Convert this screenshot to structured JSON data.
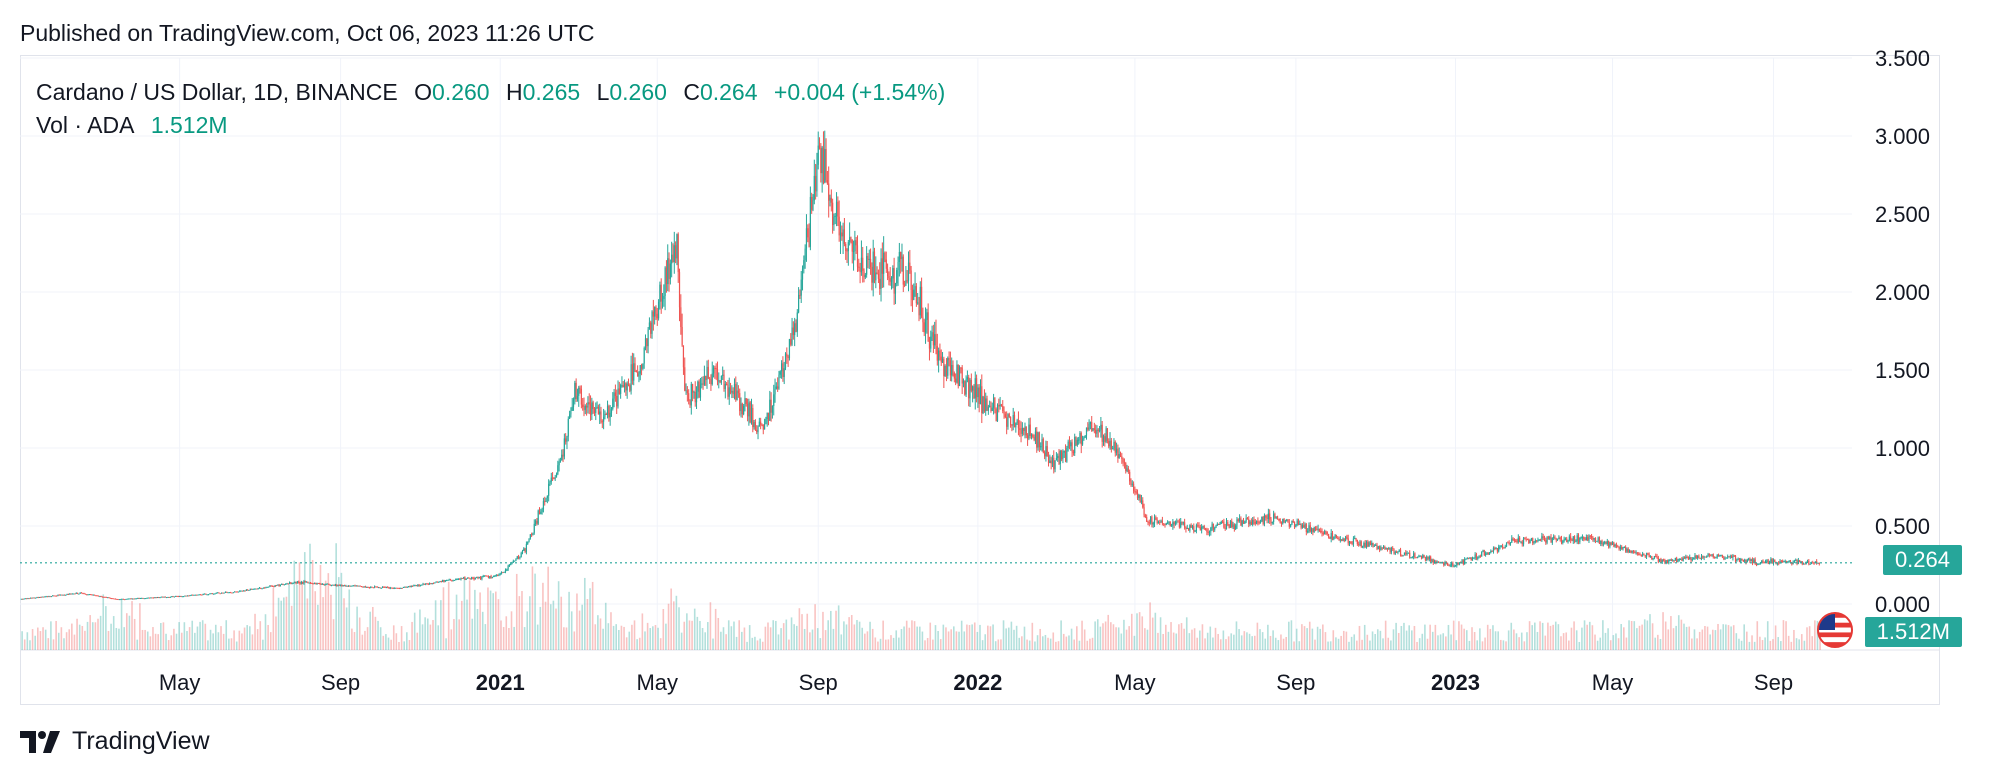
{
  "header": {
    "published": "Published on TradingView.com, Oct 06, 2023 11:26 UTC"
  },
  "legend": {
    "symbol": "Cardano / US Dollar, 1D, BINANCE",
    "o_label": "O",
    "o_value": "0.260",
    "h_label": "H",
    "h_value": "0.265",
    "l_label": "L",
    "l_value": "0.260",
    "c_label": "C",
    "c_value": "0.264",
    "change": "+0.004 (+1.54%)",
    "vol_label": "Vol · ADA",
    "vol_value": "1.512M"
  },
  "price_tag": "0.264",
  "volume_tag": "1.512M",
  "footer": {
    "brand": "TradingView"
  },
  "colors": {
    "up": "#26a69a",
    "down": "#ef5350",
    "grid": "#f0f3fa",
    "text": "#131722",
    "accent": "#089981"
  },
  "chart_data": {
    "type": "candlestick",
    "title": "Cardano / US Dollar, 1D, BINANCE",
    "y_ticks": [
      "3.500",
      "3.000",
      "2.500",
      "2.000",
      "1.500",
      "1.000",
      "0.500",
      "0.000"
    ],
    "ylim": [
      0,
      3.5
    ],
    "x_ticks": [
      {
        "label": "May",
        "date": "2020-05-01",
        "bold": false
      },
      {
        "label": "Sep",
        "date": "2020-09-01",
        "bold": false
      },
      {
        "label": "2021",
        "date": "2021-01-01",
        "bold": true
      },
      {
        "label": "May",
        "date": "2021-05-01",
        "bold": false
      },
      {
        "label": "Sep",
        "date": "2021-09-01",
        "bold": false
      },
      {
        "label": "2022",
        "date": "2022-01-01",
        "bold": true
      },
      {
        "label": "May",
        "date": "2022-05-01",
        "bold": false
      },
      {
        "label": "Sep",
        "date": "2022-09-01",
        "bold": false
      },
      {
        "label": "2023",
        "date": "2023-01-01",
        "bold": true
      },
      {
        "label": "May",
        "date": "2023-05-01",
        "bold": false
      },
      {
        "label": "Sep",
        "date": "2023-09-01",
        "bold": false
      }
    ],
    "xlim": [
      "2019-12-31",
      "2023-10-31"
    ],
    "last_close": 0.264,
    "close_path": [
      [
        "2020-01-01",
        0.033
      ],
      [
        "2020-02-15",
        0.07
      ],
      [
        "2020-03-15",
        0.03
      ],
      [
        "2020-05-01",
        0.05
      ],
      [
        "2020-06-15",
        0.08
      ],
      [
        "2020-07-30",
        0.14
      ],
      [
        "2020-09-01",
        0.12
      ],
      [
        "2020-10-15",
        0.1
      ],
      [
        "2020-11-20",
        0.15
      ],
      [
        "2020-12-31",
        0.18
      ],
      [
        "2021-01-20",
        0.35
      ],
      [
        "2021-02-15",
        0.9
      ],
      [
        "2021-02-27",
        1.35
      ],
      [
        "2021-03-20",
        1.2
      ],
      [
        "2021-04-16",
        1.5
      ],
      [
        "2021-05-16",
        2.3
      ],
      [
        "2021-05-23",
        1.3
      ],
      [
        "2021-06-15",
        1.5
      ],
      [
        "2021-07-20",
        1.1
      ],
      [
        "2021-08-15",
        1.8
      ],
      [
        "2021-09-02",
        2.9
      ],
      [
        "2021-09-20",
        2.3
      ],
      [
        "2021-10-15",
        2.15
      ],
      [
        "2021-11-10",
        2.1
      ],
      [
        "2021-12-01",
        1.6
      ],
      [
        "2021-12-31",
        1.35
      ],
      [
        "2022-01-20",
        1.2
      ],
      [
        "2022-02-10",
        1.1
      ],
      [
        "2022-03-01",
        0.9
      ],
      [
        "2022-03-31",
        1.15
      ],
      [
        "2022-04-20",
        0.95
      ],
      [
        "2022-05-10",
        0.55
      ],
      [
        "2022-06-15",
        0.48
      ],
      [
        "2022-08-15",
        0.55
      ],
      [
        "2022-09-15",
        0.47
      ],
      [
        "2022-11-10",
        0.35
      ],
      [
        "2022-12-31",
        0.25
      ],
      [
        "2023-02-15",
        0.4
      ],
      [
        "2023-04-15",
        0.42
      ],
      [
        "2023-06-10",
        0.27
      ],
      [
        "2023-07-15",
        0.31
      ],
      [
        "2023-08-20",
        0.27
      ],
      [
        "2023-10-06",
        0.264
      ]
    ],
    "volume_spikes": [
      {
        "date": "2020-07-30",
        "rel": 0.95
      },
      {
        "date": "2020-08-28",
        "rel": 0.85
      },
      {
        "date": "2020-03-15",
        "rel": 0.45
      },
      {
        "date": "2020-12-01",
        "rel": 0.9
      },
      {
        "date": "2021-01-20",
        "rel": 0.7
      },
      {
        "date": "2021-02-27",
        "rel": 0.8
      },
      {
        "date": "2021-05-20",
        "rel": 0.5
      },
      {
        "date": "2021-09-05",
        "rel": 0.3
      },
      {
        "date": "2022-05-10",
        "rel": 0.3
      },
      {
        "date": "2023-06-10",
        "rel": 0.25
      }
    ]
  }
}
